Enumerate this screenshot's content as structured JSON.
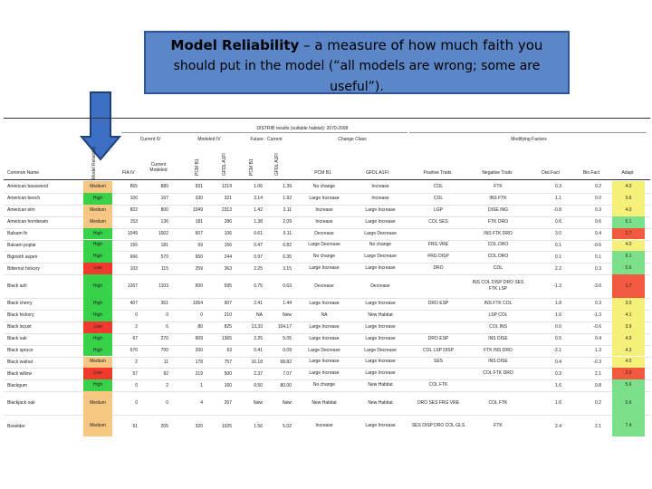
{
  "callout": {
    "title_bold": "Model Reliability",
    "title_rest": " – a measure of how much faith you",
    "line2": "should put in the model (“all models are wrong; some are",
    "line3": "useful”)."
  },
  "table": {
    "super_header": "DISTRIB results (suitable habitat): 2070-2099",
    "group_headers": {
      "current_iv": "Current IV",
      "modeled_iv": "Modeled IV",
      "future_current": "Future : Current",
      "change_class": "Change Class",
      "modifying": "Modifying Factors"
    },
    "columns": {
      "common_name": "Common Name",
      "reliability": "Model Reliability",
      "fia_iv": "FIA IV",
      "current_modeled": "Current Modeled",
      "pcm_b1": "PCM B1",
      "gfdl_a1fi": "GFDL A1FI",
      "pcm_b1_2": "PCM B1",
      "gfdl_a1fi_2": "GFDL A1FI",
      "chg_pcm": "PCM B1",
      "chg_gfdl": "GFDL A1FI",
      "pos_traits": "Positive Traits",
      "neg_traits": "Negative Traits",
      "dist_fact": "Dist.Fact",
      "bio_fact": "Bio.Fact",
      "adapt": "Adapt"
    },
    "rows": [
      {
        "name": "American basswood",
        "rel": "Medium",
        "fia": "865",
        "cm": "880",
        "m1": "931",
        "m2": "1219",
        "f1": "1.06",
        "f2": "1.39",
        "c1": "No change",
        "c2": "Increase",
        "pos": "COL",
        "neg": "FTK",
        "dist": "0.3",
        "bio": "0.2",
        "adapt": "4.0",
        "ac": "yellow"
      },
      {
        "name": "American beech",
        "rel": "High",
        "fia": "100",
        "cm": "167",
        "m1": "330",
        "m2": "321",
        "f1": "2.14",
        "f2": "1.92",
        "c1": "Large Increase",
        "c2": "Increase",
        "pos": "COL",
        "neg": "INS FTK",
        "dist": "1.1",
        "bio": "0.0",
        "adapt": "3.6",
        "ac": "yellow"
      },
      {
        "name": "American elm",
        "rel": "Medium",
        "fia": "822",
        "cm": "800",
        "m1": "1049",
        "m2": "2313",
        "f1": "1.42",
        "f2": "2.11",
        "c1": "Increase",
        "c2": "Large Increase",
        "pos": "LGP",
        "neg": "DISE ING",
        "dist": "-0.8",
        "bio": "0.3",
        "adapt": "4.0",
        "ac": "yellow"
      },
      {
        "name": "American hornbeam",
        "rel": "Medium",
        "fia": "153",
        "cm": "136",
        "m1": "181",
        "m2": "286",
        "f1": "1.38",
        "f2": "2.09",
        "c1": "Increase",
        "c2": "Large Increase",
        "pos": "COL SES",
        "neg": "FTK DRO",
        "dist": "0.6",
        "bio": "0.6",
        "adapt": "5.1",
        "ac": "green"
      },
      {
        "name": "Balsam fir",
        "rel": "High",
        "fia": "1049",
        "cm": "1002",
        "m1": "607",
        "m2": "106",
        "f1": "0.61",
        "f2": "0.11",
        "c1": "Decrease",
        "c2": "Large Decrease",
        "pos": "",
        "neg": "INS FTK DRO",
        "dist": "3.0",
        "bio": "0.4",
        "adapt": "2.7",
        "ac": "red"
      },
      {
        "name": "Balsam poplar",
        "rel": "High",
        "fia": "155",
        "cm": "181",
        "m1": "69",
        "m2": "156",
        "f1": "0.47",
        "f2": "0.82",
        "c1": "Large Decrease",
        "c2": "No change",
        "pos": "FRG VRE",
        "neg": "COL DRO",
        "dist": "0.1",
        "bio": "-0.6",
        "adapt": "4.0",
        "ac": "yellow"
      },
      {
        "name": "Bigtooth aspen",
        "rel": "High",
        "fia": "666",
        "cm": "570",
        "m1": "650",
        "m2": "244",
        "f1": "0.97",
        "f2": "0.35",
        "c1": "No change",
        "c2": "Large Decrease",
        "pos": "FRG DISP",
        "neg": "COL DRO",
        "dist": "0.1",
        "bio": "0.1",
        "adapt": "5.1",
        "ac": "green"
      },
      {
        "name": "Bitternut hickory",
        "rel": "Low",
        "fia": "103",
        "cm": "115",
        "m1": "259",
        "m2": "363",
        "f1": "2.25",
        "f2": "3.15",
        "c1": "Large Increase",
        "c2": "Large Increase",
        "pos": "DRO",
        "neg": "COL",
        "dist": "2.2",
        "bio": "0.3",
        "adapt": "5.6",
        "ac": "green"
      },
      {
        "name": "Black ash",
        "rel": "High",
        "fia": "1267",
        "cm": "1103",
        "m1": "600",
        "m2": "695",
        "f1": "0.75",
        "f2": "0.63",
        "c1": "Decrease",
        "c2": "Decrease",
        "pos": "",
        "neg": "INS COL DISP DRO SES FTK LSP",
        "dist": "-1.3",
        "bio": "-3.0",
        "adapt": "1.7",
        "ac": "red",
        "tall": true
      },
      {
        "name": "Black cherry",
        "rel": "High",
        "fia": "407",
        "cm": "361",
        "m1": "1064",
        "m2": "907",
        "f1": "2.41",
        "f2": "1.44",
        "c1": "Large Increase",
        "c2": "Large Increase",
        "pos": "DRO ESP",
        "neg": "INS FTK COL",
        "dist": "1.8",
        "bio": "0.3",
        "adapt": "3.0",
        "ac": "yellow"
      },
      {
        "name": "Black hickory",
        "rel": "High",
        "fia": "0",
        "cm": "0",
        "m1": "0",
        "m2": "210",
        "f1": "NA",
        "f2": "New",
        "c1": "NA",
        "c2": "New Habitat",
        "pos": "",
        "neg": "LSP COL",
        "dist": "1.0",
        "bio": "-1.3",
        "adapt": "4.1",
        "ac": "yellow"
      },
      {
        "name": "Black locust",
        "rel": "Low",
        "fia": "2",
        "cm": "6",
        "m1": "80",
        "m2": "825",
        "f1": "13.33",
        "f2": "104.17",
        "c1": "Large Increase",
        "c2": "Large Increase",
        "pos": "",
        "neg": "COL INS",
        "dist": "0.0",
        "bio": "-0.6",
        "adapt": "3.9",
        "ac": "yellow"
      },
      {
        "name": "Black oak",
        "rel": "High",
        "fia": "67",
        "cm": "270",
        "m1": "609",
        "m2": "1365",
        "f1": "2.25",
        "f2": "5.05",
        "c1": "Large Increase",
        "c2": "Large Increase",
        "pos": "DRO ESP",
        "neg": "INS DISE",
        "dist": "0.5",
        "bio": "0.4",
        "adapt": "4.9",
        "ac": "yellow"
      },
      {
        "name": "Black spruce",
        "rel": "High",
        "fia": "670",
        "cm": "700",
        "m1": "200",
        "m2": "63",
        "f1": "0.41",
        "f2": "0.09",
        "c1": "Large Decrease",
        "c2": "Large Decrease",
        "pos": "COL LSP DISP",
        "neg": "FTK INS DRO",
        "dist": "-2.1",
        "bio": "1.3",
        "adapt": "4.3",
        "ac": "yellow"
      },
      {
        "name": "Black walnut",
        "rel": "Medium",
        "fia": "2",
        "cm": "11",
        "m1": "178",
        "m2": "757",
        "f1": "16.18",
        "f2": "68.82",
        "c1": "Large Increase",
        "c2": "Large Increase",
        "pos": "SES",
        "neg": "INS DISE",
        "dist": "0.4",
        "bio": "-0.3",
        "adapt": "4.0",
        "ac": "yellow"
      },
      {
        "name": "Black willow",
        "rel": "Low",
        "fia": "57",
        "cm": "92",
        "m1": "219",
        "m2": "500",
        "f1": "2.37",
        "f2": "7.07",
        "c1": "Large Increase",
        "c2": "Large Increase",
        "pos": "",
        "neg": "COL FTK DRO",
        "dist": "0.3",
        "bio": "2.1",
        "adapt": "2.6",
        "ac": "red"
      },
      {
        "name": "Blackgum",
        "rel": "High",
        "fia": "0",
        "cm": "2",
        "m1": "1",
        "m2": "160",
        "f1": "0.50",
        "f2": "80.00",
        "c1": "No change",
        "c2": "New Habitat",
        "pos": "COL FTK",
        "neg": "",
        "dist": "1.6",
        "bio": "0.8",
        "adapt": "5.6",
        "ac": "green"
      },
      {
        "name": "Blackjack oak",
        "rel": "Medium",
        "fia": "0",
        "cm": "0",
        "m1": "4",
        "m2": "267",
        "f1": "New",
        "f2": "New",
        "c1": "New Habitat",
        "c2": "New Habitat",
        "pos": "DRO SES FRG VRE",
        "neg": "COL FTK",
        "dist": "1.6",
        "bio": "0.2",
        "adapt": "5.6",
        "ac": "green",
        "tall": true
      },
      {
        "name": "Boxelder",
        "rel": "Medium",
        "fia": "61",
        "cm": "205",
        "m1": "320",
        "m2": "1025",
        "f1": "1.56",
        "f2": "5.02",
        "c1": "Increase",
        "c2": "Large Increase",
        "pos": "SES DISP DRO COL GLS",
        "neg": "FTK",
        "dist": "2.4",
        "bio": "2.1",
        "adapt": "7.4",
        "ac": "green",
        "tall": true
      }
    ]
  }
}
